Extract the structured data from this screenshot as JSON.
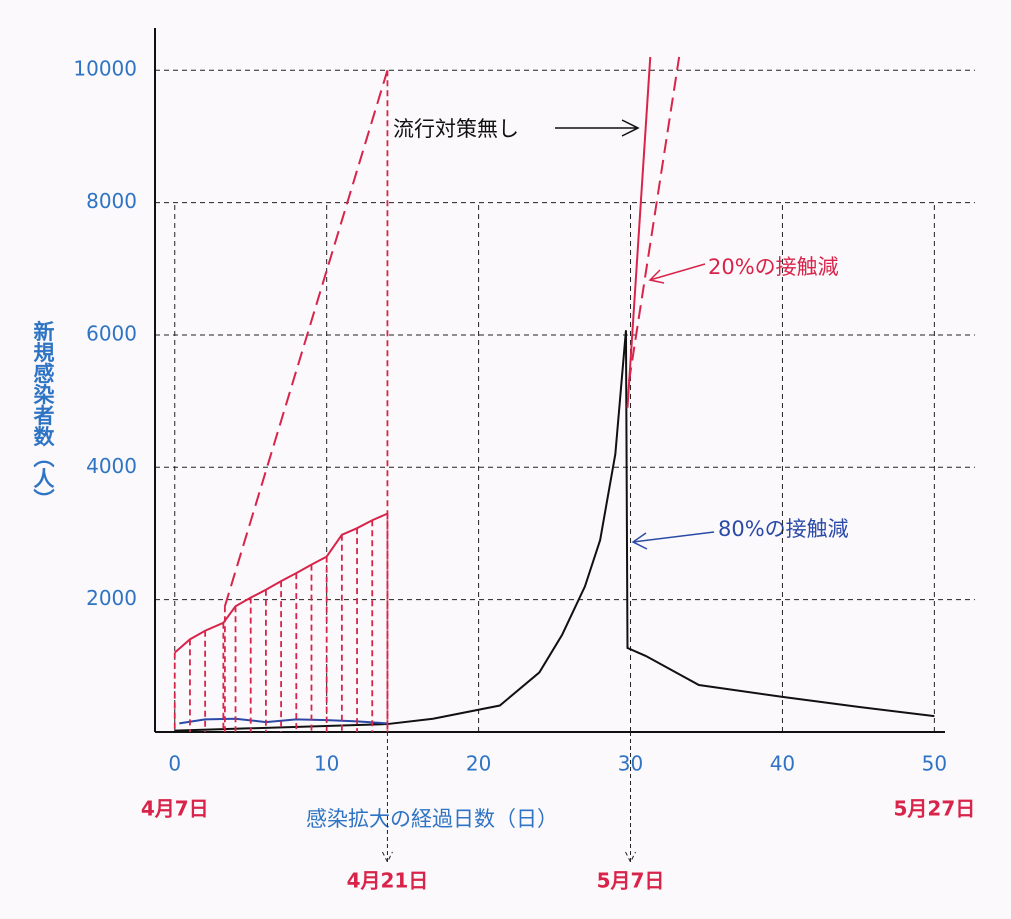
{
  "chart_data": {
    "type": "line",
    "y_label": "新規感染者数（人）",
    "x_label": "感染拡大の経過日数（日）",
    "xlim": [
      -1.3,
      50.7
    ],
    "ylim": [
      0,
      10200
    ],
    "xticks": [
      0,
      10,
      20,
      30,
      40,
      50
    ],
    "yticks": [
      2000,
      4000,
      6000,
      8000,
      10000
    ],
    "grid": true,
    "series": [
      {
        "color": "#111111",
        "dash": false,
        "x": [
          0,
          14,
          17,
          21.4,
          24,
          25.5,
          27,
          28,
          29,
          29.7,
          29.8,
          31,
          34.5,
          40,
          45,
          50
        ],
        "values": [
          20,
          120,
          200,
          400,
          900,
          1470,
          2200,
          2900,
          4200,
          6070,
          1270,
          1150,
          710,
          530,
          380,
          240
        ]
      },
      {
        "color": "#2b4aa8",
        "dash": false,
        "x": [
          0.3,
          2,
          4,
          6,
          8,
          10,
          12,
          14
        ],
        "values": [
          130,
          190,
          200,
          150,
          190,
          180,
          160,
          130
        ]
      },
      {
        "color": "#d8244a",
        "dash": false,
        "drop_lines": true,
        "x": [
          0,
          1,
          2,
          3.2,
          4,
          5,
          6,
          7,
          8,
          9,
          10,
          11,
          12,
          13,
          14
        ],
        "values": [
          1200,
          1400,
          1530,
          1650,
          1900,
          2030,
          2150,
          2280,
          2400,
          2530,
          2650,
          2980,
          3080,
          3200,
          3300
        ]
      },
      {
        "color": "#d8244a",
        "dash": true,
        "drop_lines": true,
        "x": [
          3.3,
          14
        ],
        "values": [
          1900,
          10000
        ]
      },
      {
        "color": "#d8244a",
        "dash": false,
        "x": [
          29.8,
          31.3
        ],
        "values": [
          4900,
          10200
        ]
      },
      {
        "color": "#d8244a",
        "dash": true,
        "x": [
          29.9,
          33.2
        ],
        "values": [
          5300,
          10200
        ]
      }
    ],
    "annotations": [
      "流行対策無し",
      "20%の接触減",
      "80%の接触減"
    ],
    "date_labels": [
      {
        "x": 0,
        "label": "4月7日"
      },
      {
        "x": 14,
        "label": "4月21日"
      },
      {
        "x": 30,
        "label": "5月7日"
      },
      {
        "x": 50,
        "label": "5月27日"
      }
    ]
  }
}
